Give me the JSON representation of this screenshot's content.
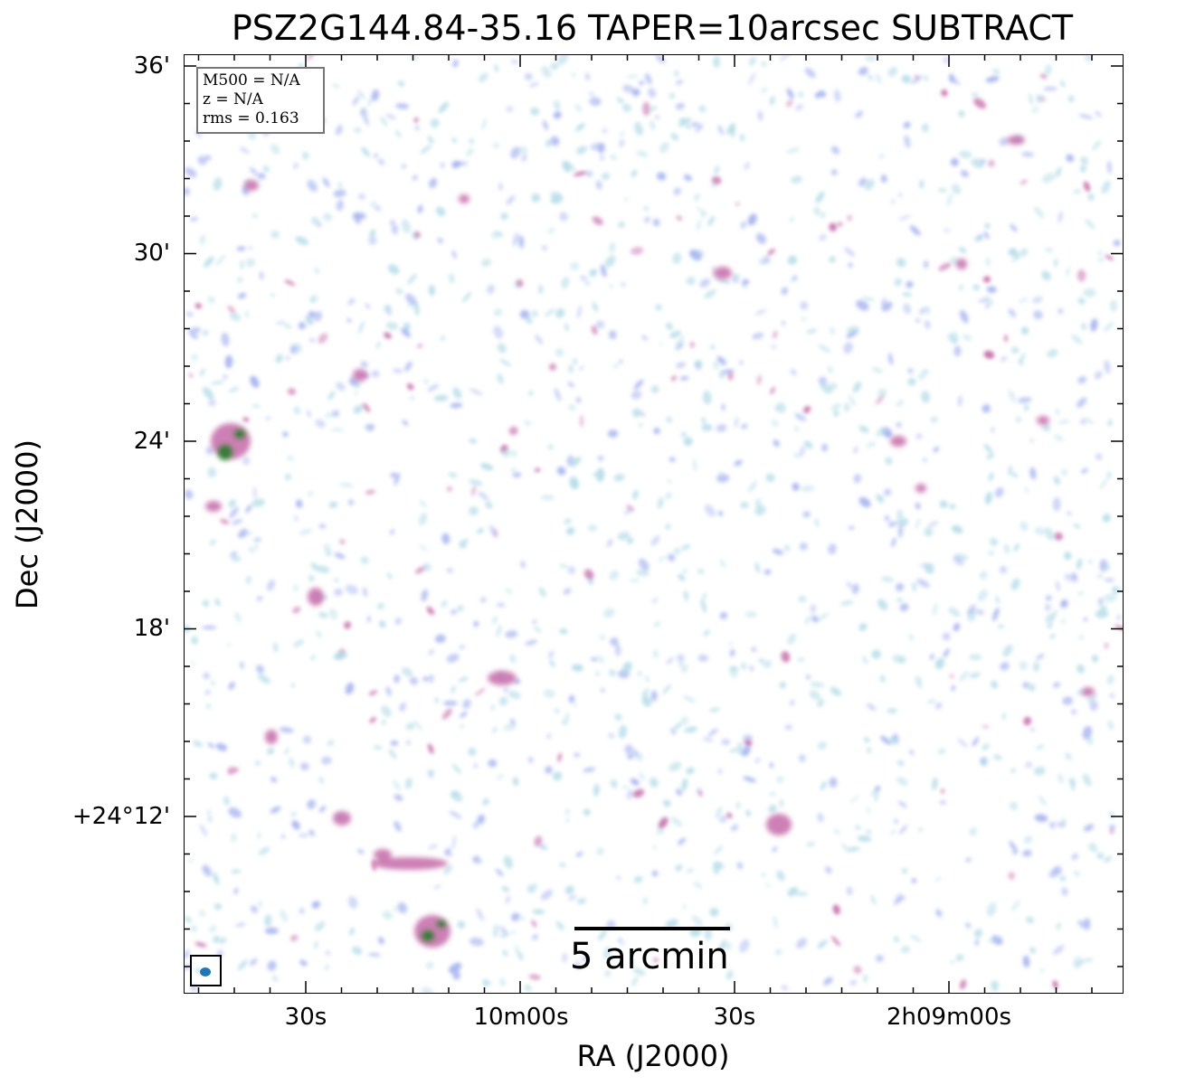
{
  "title": "PSZ2G144.84-35.16 TAPER=10arcsec SUBTRACT",
  "axes": {
    "xlabel": "RA (J2000)",
    "ylabel": "Dec (J2000)",
    "y_ticks": [
      "36'",
      "30'",
      "24'",
      "18'",
      "+24°12'"
    ],
    "x_ticks": [
      "30s",
      "10m00s",
      "30s",
      "2h09m00s"
    ]
  },
  "infobox": {
    "m500": "M500 = N/A",
    "z": "z = N/A",
    "rms": "rms = 0.163"
  },
  "scalebar": {
    "label": "5 arcmin"
  },
  "colors": {
    "low": "#b7dde8",
    "mid": "#a7b4f0",
    "high": "#c46aa8",
    "peak": "#2e7d32",
    "beam": "#1f77b4"
  }
}
